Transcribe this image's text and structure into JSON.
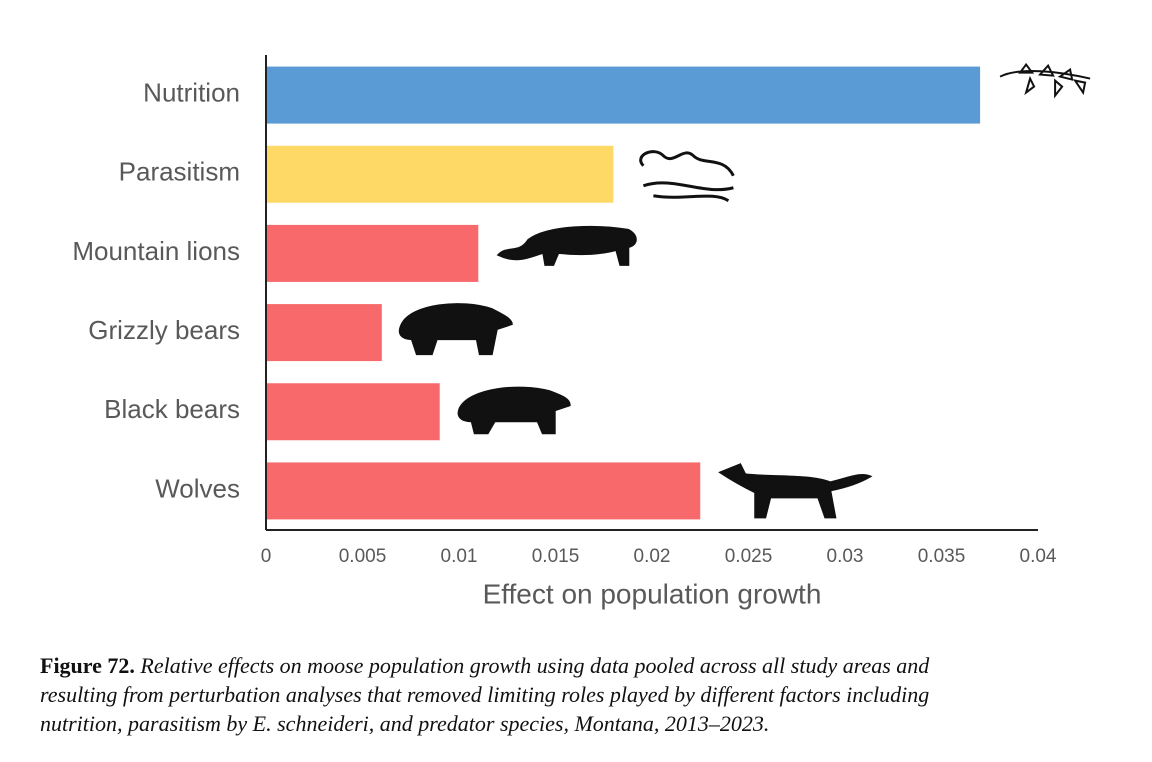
{
  "chart_data": {
    "type": "barh",
    "categories": [
      "Nutrition",
      "Parasitism",
      "Mountain lions",
      "Grizzly bears",
      "Black bears",
      "Wolves"
    ],
    "values": [
      0.037,
      0.018,
      0.011,
      0.006,
      0.009,
      0.0225
    ],
    "colors": [
      "#5b9bd5",
      "#ffd966",
      "#f8696b",
      "#f8696b",
      "#f8696b",
      "#f8696b"
    ],
    "xlabel": "Effect on population growth",
    "xlim": [
      0,
      0.04
    ],
    "xticks": [
      0,
      0.005,
      0.01,
      0.015,
      0.02,
      0.025,
      0.03,
      0.035,
      0.04
    ]
  },
  "caption": {
    "label": "Figure 72.",
    "lines": [
      "Relative effects on moose population growth using data pooled across all study areas and",
      "resulting from perturbation analyses that removed limiting roles played by different factors including",
      "nutrition, parasitism by E. schneideri, and predator species, Montana, 2013–2023."
    ]
  }
}
